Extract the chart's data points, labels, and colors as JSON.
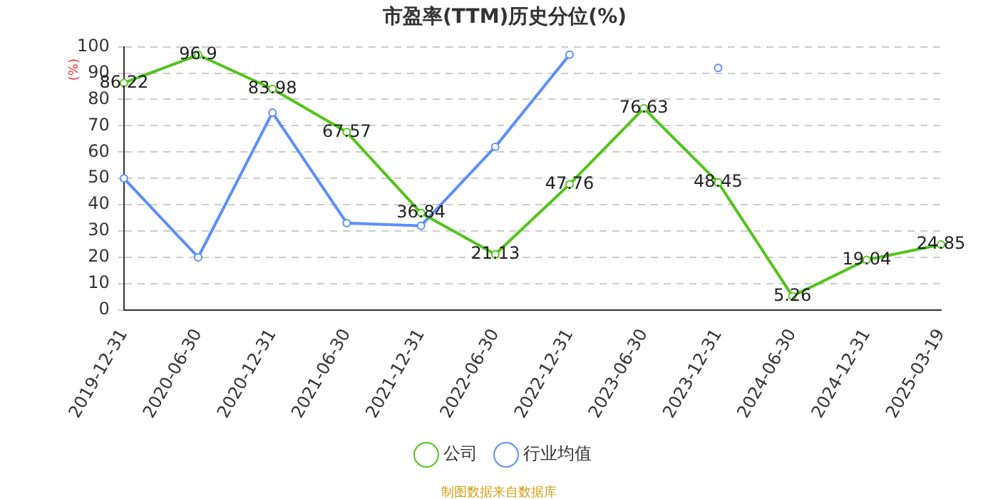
{
  "chart_data": {
    "type": "line",
    "title": "市盈率(TTM)历史分位(%)",
    "ylabel": "(%)",
    "categories": [
      "2019-12-31",
      "2020-06-30",
      "2020-12-31",
      "2021-06-30",
      "2021-12-31",
      "2022-06-30",
      "2022-12-31",
      "2023-06-30",
      "2023-12-31",
      "2024-06-30",
      "2024-12-31",
      "2025-03-19"
    ],
    "series": [
      {
        "name": "公司",
        "color": "#52c41a",
        "values": [
          86.22,
          96.9,
          83.98,
          67.57,
          36.84,
          21.13,
          47.76,
          76.63,
          48.45,
          5.26,
          19.04,
          24.85
        ],
        "data_labels": true
      },
      {
        "name": "行业均值",
        "color": "#5b8ff9",
        "values": [
          50,
          20,
          75,
          33,
          32,
          62,
          97,
          null,
          92,
          null,
          null,
          null
        ]
      }
    ],
    "ylim": [
      0,
      100
    ],
    "yticks": [
      0,
      10,
      20,
      30,
      40,
      50,
      60,
      70,
      80,
      90,
      100
    ],
    "grid": "y",
    "legend": "bottom",
    "marker": "circle",
    "annotations": [
      "制图数据来自数据库"
    ]
  }
}
